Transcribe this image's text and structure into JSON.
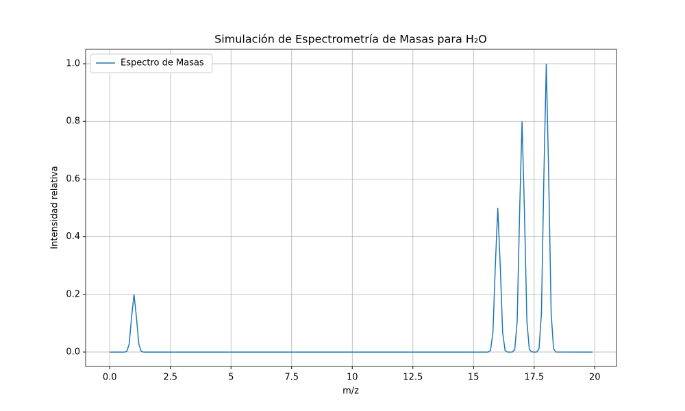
{
  "chart_data": {
    "type": "line",
    "title": "Simulación de Espectrometría de Masas para H₂O",
    "x_label": "m/z",
    "y_label": "Intensidad relativa",
    "x": [
      0,
      0.6,
      0.7,
      0.8,
      0.9,
      1.0,
      1.1,
      1.2,
      1.3,
      1.4,
      15.6,
      15.7,
      15.8,
      15.9,
      16.0,
      16.1,
      16.2,
      16.3,
      16.4,
      16.5,
      16.6,
      16.7,
      16.8,
      16.9,
      17.0,
      17.1,
      17.2,
      17.3,
      17.4,
      17.5,
      17.6,
      17.7,
      17.8,
      17.9,
      18.0,
      18.1,
      18.2,
      18.3,
      18.4,
      19.9
    ],
    "series": [
      {
        "name": "Espectro de Masas",
        "color": "#1f77b4",
        "values": [
          0,
          0,
          0.002,
          0.027,
          0.121,
          0.2,
          0.121,
          0.027,
          0.002,
          0,
          0,
          0.006,
          0.068,
          0.303,
          0.5,
          0.303,
          0.068,
          0.006,
          0,
          0,
          0.0003,
          0.009,
          0.108,
          0.485,
          0.8,
          0.485,
          0.108,
          0.009,
          0.0007,
          0,
          0.0003,
          0.011,
          0.135,
          0.607,
          1.0,
          0.607,
          0.135,
          0.011,
          0.0003,
          0
        ]
      }
    ],
    "xlim": [
      -0.995,
      20.895
    ],
    "xticks": [
      {
        "value": 0,
        "label": "0.0"
      },
      2.5,
      5,
      7.5,
      10,
      12.5,
      15,
      17.5,
      20
    ],
    "ylim": [
      -0.05,
      1.05
    ],
    "yticks": [
      {
        "value": 0,
        "label": "0.0"
      },
      0.2,
      0.4,
      0.6,
      0.8,
      {
        "value": 1,
        "label": "1.0"
      }
    ],
    "grid": true,
    "legend": "upper-left"
  }
}
